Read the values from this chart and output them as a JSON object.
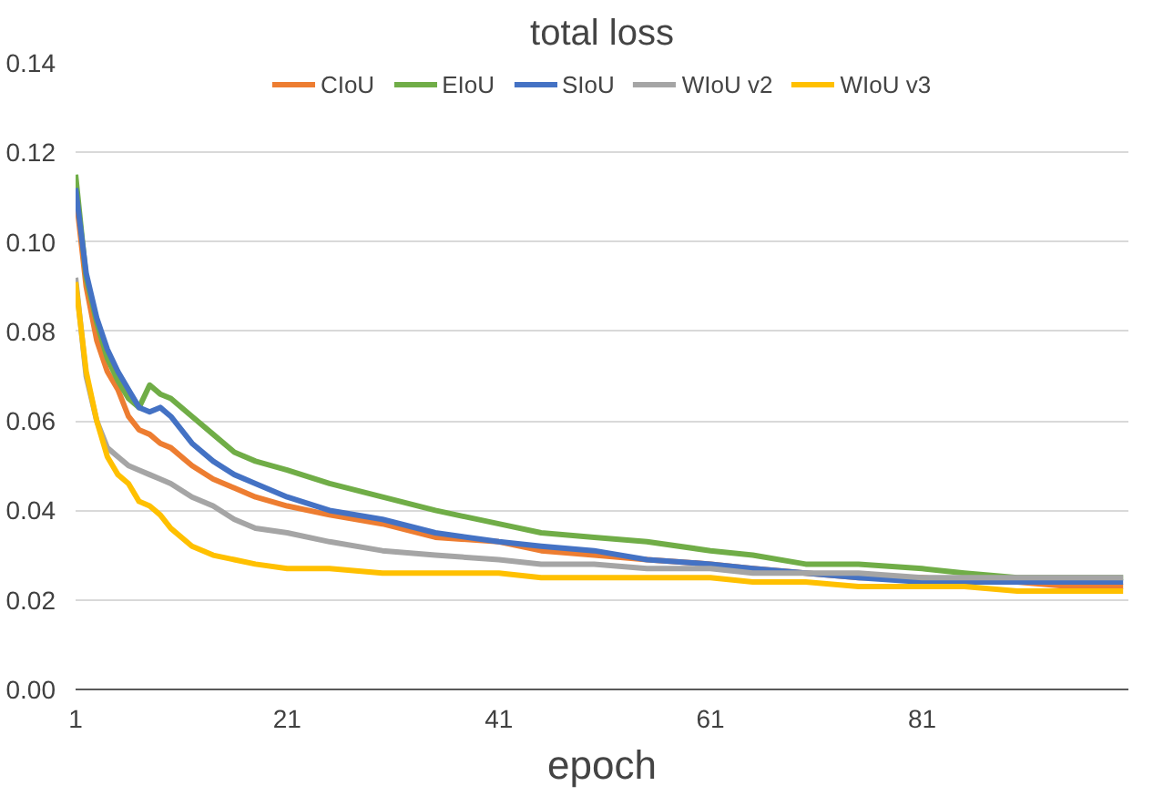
{
  "chart_data": {
    "type": "line",
    "title": "total loss",
    "xlabel": "epoch",
    "x": [
      1,
      2,
      3,
      4,
      5,
      6,
      7,
      8,
      9,
      10,
      12,
      14,
      16,
      18,
      21,
      25,
      30,
      35,
      41,
      45,
      50,
      55,
      61,
      65,
      70,
      75,
      81,
      85,
      90,
      95,
      100
    ],
    "series": [
      {
        "name": "CIoU",
        "color": "#ed7d31",
        "values": [
          0.111,
          0.09,
          0.078,
          0.071,
          0.067,
          0.061,
          0.058,
          0.057,
          0.055,
          0.054,
          0.05,
          0.047,
          0.045,
          0.043,
          0.041,
          0.039,
          0.037,
          0.034,
          0.033,
          0.031,
          0.03,
          0.029,
          0.028,
          0.027,
          0.026,
          0.025,
          0.025,
          0.024,
          0.024,
          0.023,
          0.023
        ]
      },
      {
        "name": "EIoU",
        "color": "#70ad47",
        "values": [
          0.115,
          0.092,
          0.082,
          0.074,
          0.069,
          0.065,
          0.063,
          0.068,
          0.066,
          0.065,
          0.061,
          0.057,
          0.053,
          0.051,
          0.049,
          0.046,
          0.043,
          0.04,
          0.037,
          0.035,
          0.034,
          0.033,
          0.031,
          0.03,
          0.028,
          0.028,
          0.027,
          0.026,
          0.025,
          0.025,
          0.025
        ]
      },
      {
        "name": "SIoU",
        "color": "#4472c4",
        "values": [
          0.112,
          0.093,
          0.083,
          0.076,
          0.071,
          0.067,
          0.063,
          0.062,
          0.063,
          0.061,
          0.055,
          0.051,
          0.048,
          0.046,
          0.043,
          0.04,
          0.038,
          0.035,
          0.033,
          0.032,
          0.031,
          0.029,
          0.028,
          0.027,
          0.026,
          0.025,
          0.024,
          0.024,
          0.024,
          0.024,
          0.024
        ]
      },
      {
        "name": "WIoU v2",
        "color": "#a5a5a5",
        "values": [
          0.092,
          0.07,
          0.06,
          0.054,
          0.052,
          0.05,
          0.049,
          0.048,
          0.047,
          0.046,
          0.043,
          0.041,
          0.038,
          0.036,
          0.035,
          0.033,
          0.031,
          0.03,
          0.029,
          0.028,
          0.028,
          0.027,
          0.027,
          0.026,
          0.026,
          0.026,
          0.025,
          0.025,
          0.025,
          0.025,
          0.025
        ]
      },
      {
        "name": "WIoU v3",
        "color": "#ffc000",
        "values": [
          0.091,
          0.071,
          0.06,
          0.052,
          0.048,
          0.046,
          0.042,
          0.041,
          0.039,
          0.036,
          0.032,
          0.03,
          0.029,
          0.028,
          0.027,
          0.027,
          0.026,
          0.026,
          0.026,
          0.025,
          0.025,
          0.025,
          0.025,
          0.024,
          0.024,
          0.023,
          0.023,
          0.023,
          0.022,
          0.022,
          0.022
        ]
      }
    ],
    "xlim": [
      1,
      100.5
    ],
    "xticks": [
      1,
      21,
      41,
      61,
      81
    ],
    "ylim": [
      0,
      0.14
    ],
    "yticks": [
      {
        "value": 0,
        "label": "0.00"
      },
      {
        "value": 0.02,
        "label": "0.02"
      },
      {
        "value": 0.04,
        "label": "0.04"
      },
      {
        "value": 0.06,
        "label": "0.06"
      },
      {
        "value": 0.08,
        "label": "0.08"
      },
      {
        "value": 0.1,
        "label": "0.10"
      },
      {
        "value": 0.12,
        "label": "0.12"
      },
      {
        "value": 0.14,
        "label": "0.14"
      }
    ],
    "grid": "y",
    "legend": "top",
    "line_style": "solid",
    "marker": "none"
  }
}
